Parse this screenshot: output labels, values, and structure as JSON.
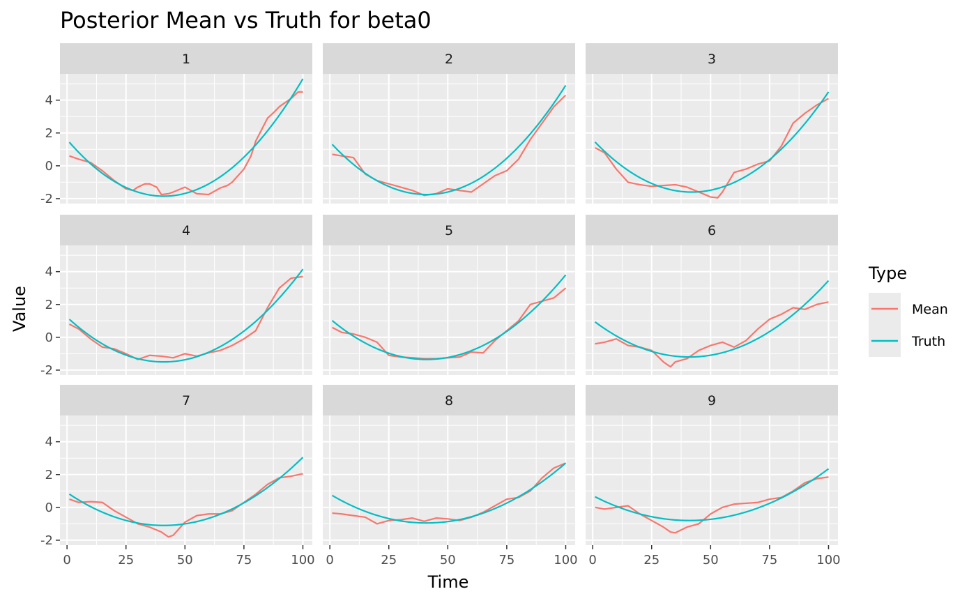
{
  "chart_data": {
    "type": "line",
    "title": "Posterior Mean vs Truth for beta0",
    "xlabel": "Time",
    "ylabel": "Value",
    "xlim": [
      -3,
      104
    ],
    "ylim": [
      -2.3,
      5.6
    ],
    "x_ticks": [
      0,
      25,
      50,
      75,
      100
    ],
    "x_tick_labels": [
      "0",
      "25",
      "50",
      "75",
      "100"
    ],
    "y_ticks": [
      -2,
      0,
      2,
      4
    ],
    "y_tick_labels": [
      "-2",
      "0",
      "2",
      "4"
    ],
    "grid": true,
    "legend": {
      "title": "Type",
      "position": "right",
      "entries": [
        {
          "label": "Mean",
          "color": "#F8766D"
        },
        {
          "label": "Truth",
          "color": "#00BFC4"
        }
      ]
    },
    "colors": {
      "Mean": "#F8766D",
      "Truth": "#00BFC4"
    },
    "panels": [
      {
        "label": "1",
        "truth": {
          "vertex_x": 41,
          "min": -1.85,
          "end_value": 5.3
        },
        "mean": {
          "x": [
            1,
            5,
            10,
            15,
            20,
            25,
            28,
            30,
            33,
            35,
            38,
            40,
            43,
            45,
            50,
            55,
            60,
            65,
            68,
            70,
            75,
            78,
            80,
            85,
            88,
            90,
            95,
            98,
            100
          ],
          "y": [
            0.6,
            0.4,
            0.2,
            -0.3,
            -0.9,
            -1.4,
            -1.5,
            -1.3,
            -1.1,
            -1.1,
            -1.3,
            -1.75,
            -1.7,
            -1.6,
            -1.3,
            -1.7,
            -1.75,
            -1.35,
            -1.2,
            -1.0,
            -0.2,
            0.6,
            1.5,
            2.9,
            3.3,
            3.6,
            4.1,
            4.5,
            4.5
          ]
        }
      },
      {
        "label": "2",
        "truth": {
          "vertex_x": 41,
          "min": -1.75,
          "end_value": 4.9
        },
        "mean": {
          "x": [
            1,
            5,
            10,
            15,
            20,
            25,
            30,
            35,
            40,
            45,
            50,
            55,
            60,
            65,
            70,
            75,
            80,
            85,
            90,
            95,
            100
          ],
          "y": [
            0.7,
            0.6,
            0.5,
            -0.5,
            -0.9,
            -1.1,
            -1.3,
            -1.5,
            -1.8,
            -1.7,
            -1.4,
            -1.5,
            -1.6,
            -1.1,
            -0.6,
            -0.3,
            0.4,
            1.6,
            2.6,
            3.6,
            4.3
          ]
        }
      },
      {
        "label": "3",
        "truth": {
          "vertex_x": 42,
          "min": -1.6,
          "end_value": 4.5
        },
        "mean": {
          "x": [
            1,
            5,
            10,
            15,
            20,
            25,
            30,
            35,
            40,
            45,
            50,
            53,
            55,
            60,
            65,
            70,
            75,
            80,
            85,
            90,
            95,
            100
          ],
          "y": [
            1.1,
            0.8,
            -0.2,
            -1.0,
            -1.15,
            -1.25,
            -1.2,
            -1.15,
            -1.3,
            -1.6,
            -1.9,
            -1.95,
            -1.6,
            -0.4,
            -0.2,
            0.1,
            0.3,
            1.2,
            2.6,
            3.2,
            3.7,
            4.1
          ]
        }
      },
      {
        "label": "4",
        "truth": {
          "vertex_x": 41,
          "min": -1.5,
          "end_value": 4.15
        },
        "mean": {
          "x": [
            1,
            5,
            10,
            15,
            20,
            25,
            30,
            35,
            40,
            45,
            50,
            55,
            60,
            65,
            70,
            75,
            80,
            85,
            90,
            95,
            100
          ],
          "y": [
            0.8,
            0.5,
            -0.1,
            -0.6,
            -0.7,
            -1.0,
            -1.35,
            -1.1,
            -1.15,
            -1.25,
            -1.0,
            -1.15,
            -0.95,
            -0.8,
            -0.5,
            -0.1,
            0.4,
            1.8,
            3.0,
            3.6,
            3.7
          ]
        }
      },
      {
        "label": "5",
        "truth": {
          "vertex_x": 41,
          "min": -1.35,
          "end_value": 3.8
        },
        "mean": {
          "x": [
            1,
            5,
            10,
            15,
            20,
            25,
            30,
            35,
            40,
            45,
            50,
            55,
            60,
            65,
            70,
            75,
            80,
            85,
            90,
            95,
            100
          ],
          "y": [
            0.6,
            0.3,
            0.2,
            0.0,
            -0.3,
            -1.1,
            -1.2,
            -1.25,
            -1.3,
            -1.3,
            -1.25,
            -1.2,
            -0.9,
            -0.95,
            -0.2,
            0.4,
            1.0,
            2.0,
            2.2,
            2.4,
            3.0
          ]
        }
      },
      {
        "label": "6",
        "truth": {
          "vertex_x": 41,
          "min": -1.2,
          "end_value": 3.45
        },
        "mean": {
          "x": [
            1,
            5,
            10,
            15,
            20,
            25,
            30,
            33,
            35,
            40,
            45,
            50,
            55,
            60,
            65,
            70,
            75,
            80,
            85,
            90,
            95,
            100
          ],
          "y": [
            -0.4,
            -0.3,
            -0.1,
            -0.5,
            -0.6,
            -0.8,
            -1.5,
            -1.8,
            -1.5,
            -1.3,
            -0.8,
            -0.5,
            -0.3,
            -0.6,
            -0.2,
            0.5,
            1.1,
            1.4,
            1.8,
            1.7,
            2.0,
            2.15
          ]
        }
      },
      {
        "label": "7",
        "truth": {
          "vertex_x": 41,
          "min": -1.1,
          "end_value": 3.05
        },
        "mean": {
          "x": [
            1,
            5,
            10,
            15,
            20,
            25,
            30,
            35,
            40,
            43,
            45,
            50,
            55,
            60,
            65,
            70,
            75,
            80,
            85,
            90,
            95,
            100
          ],
          "y": [
            0.5,
            0.3,
            0.35,
            0.3,
            -0.2,
            -0.6,
            -1.0,
            -1.2,
            -1.5,
            -1.8,
            -1.7,
            -0.9,
            -0.5,
            -0.4,
            -0.4,
            -0.2,
            0.3,
            0.8,
            1.4,
            1.8,
            1.9,
            2.05
          ]
        }
      },
      {
        "label": "8",
        "truth": {
          "vertex_x": 41,
          "min": -0.95,
          "end_value": 2.7
        },
        "mean": {
          "x": [
            1,
            5,
            10,
            15,
            20,
            25,
            30,
            35,
            40,
            45,
            50,
            55,
            60,
            65,
            70,
            75,
            80,
            85,
            90,
            95,
            100
          ],
          "y": [
            -0.35,
            -0.4,
            -0.5,
            -0.6,
            -1.0,
            -0.8,
            -0.75,
            -0.65,
            -0.85,
            -0.65,
            -0.7,
            -0.8,
            -0.6,
            -0.3,
            0.1,
            0.5,
            0.6,
            1.0,
            1.8,
            2.4,
            2.7
          ]
        }
      },
      {
        "label": "9",
        "truth": {
          "vertex_x": 41,
          "min": -0.8,
          "end_value": 2.35
        },
        "mean": {
          "x": [
            1,
            5,
            10,
            15,
            20,
            25,
            30,
            33,
            35,
            40,
            45,
            50,
            55,
            60,
            65,
            70,
            75,
            80,
            85,
            90,
            95,
            100
          ],
          "y": [
            0.0,
            -0.1,
            0.0,
            0.1,
            -0.4,
            -0.8,
            -1.2,
            -1.5,
            -1.55,
            -1.2,
            -1.0,
            -0.4,
            0.0,
            0.2,
            0.25,
            0.3,
            0.5,
            0.6,
            1.0,
            1.5,
            1.75,
            1.85
          ]
        }
      }
    ]
  }
}
